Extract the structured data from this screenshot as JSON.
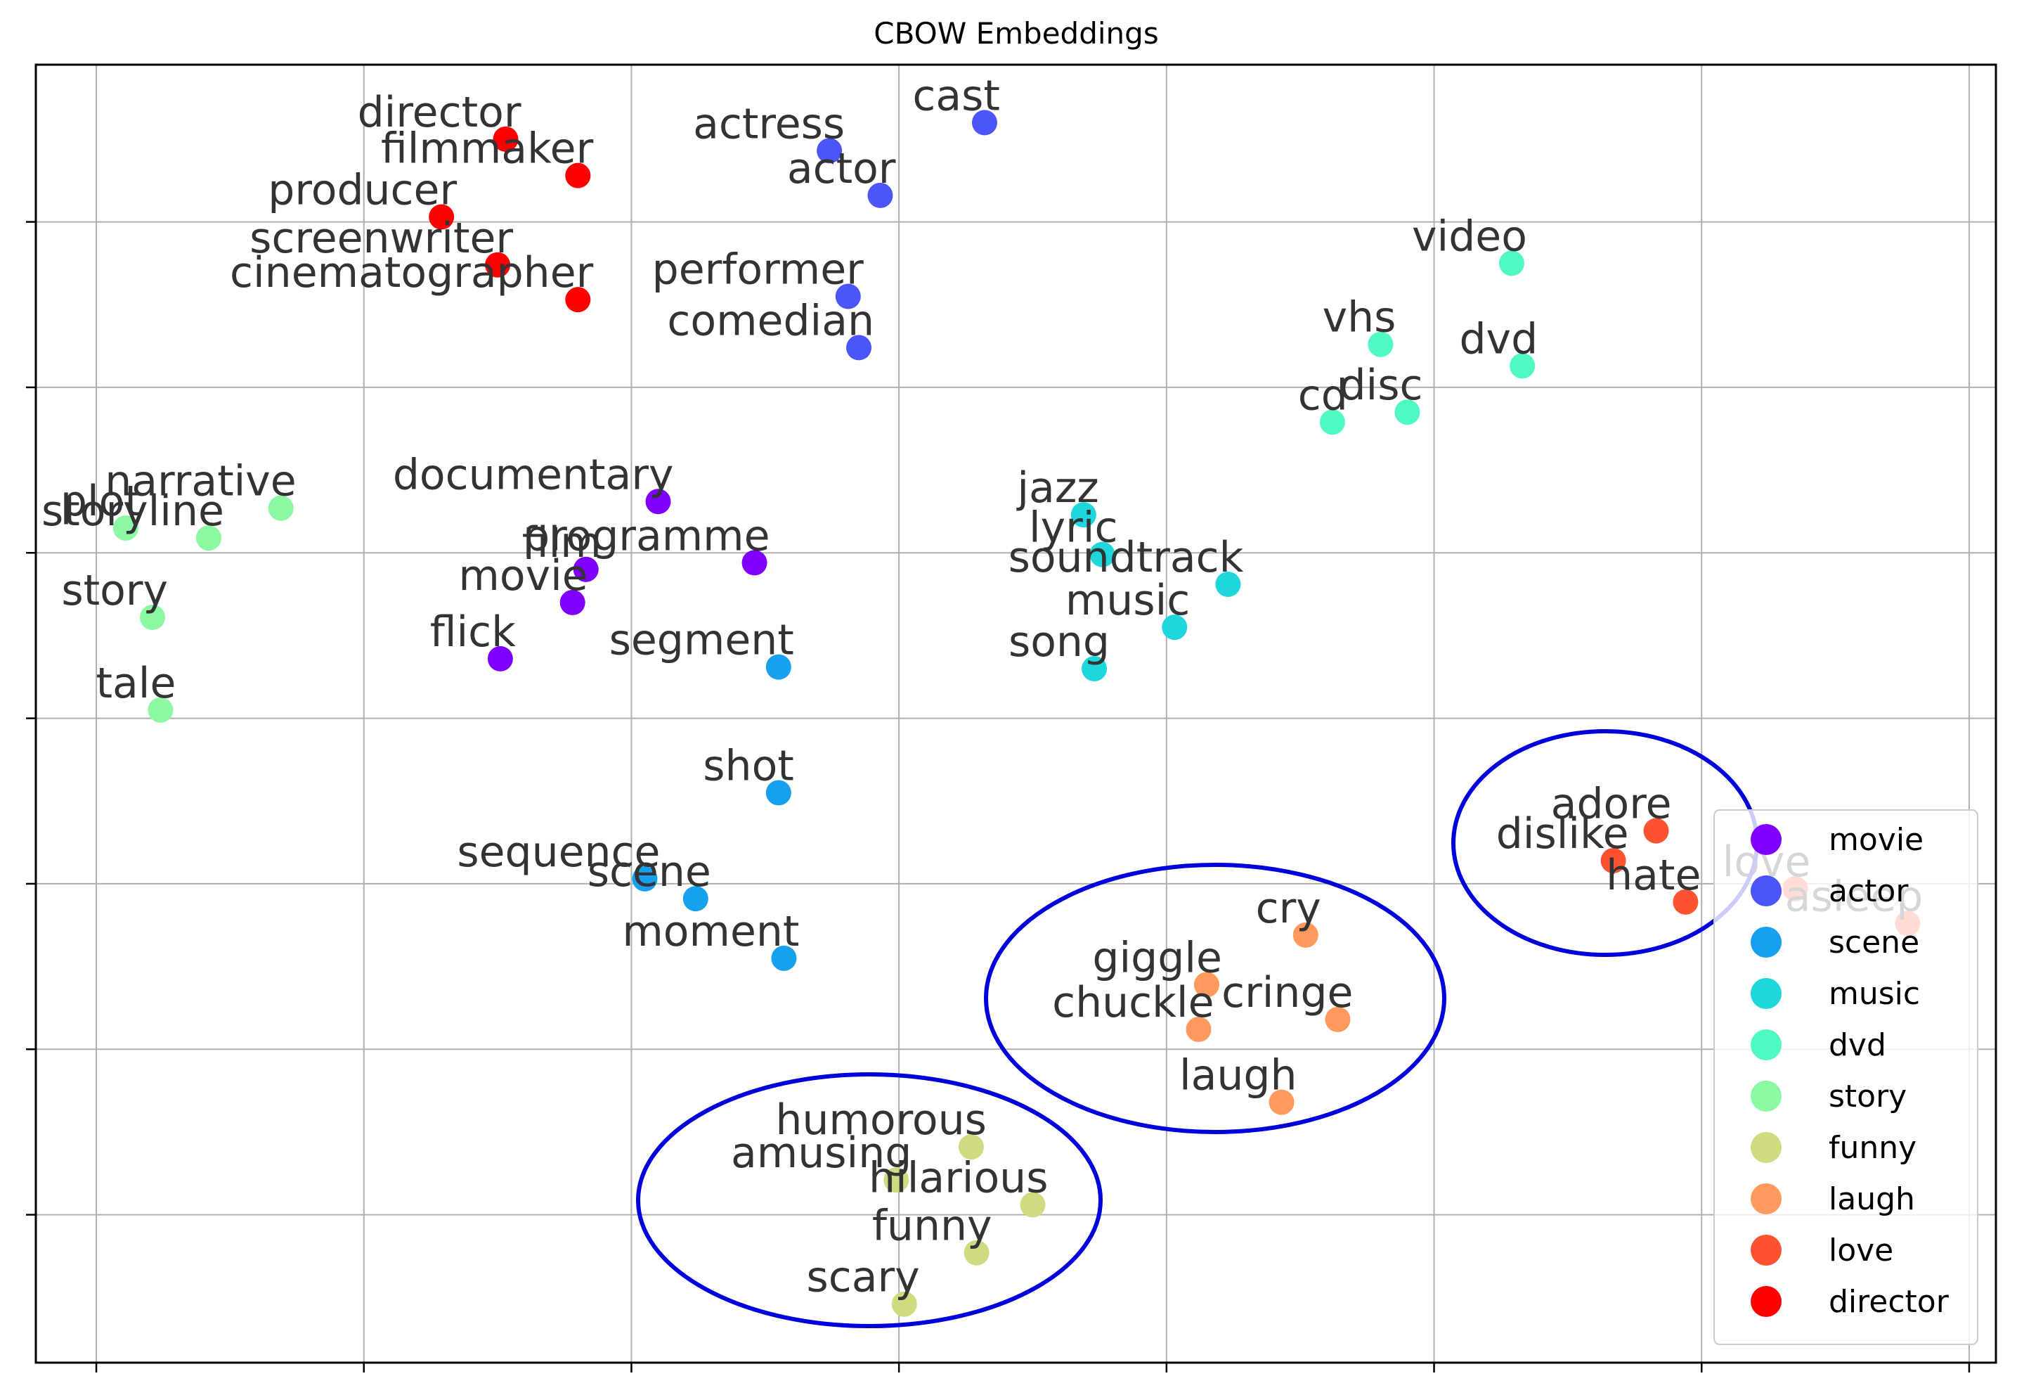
{
  "chart_data": {
    "type": "scatter",
    "title": "CBOW Embeddings",
    "xlim": [
      -0.226,
      7.1
    ],
    "ylim": [
      0.106,
      7.95
    ],
    "xticks": [
      0,
      1,
      2,
      3,
      4,
      5,
      6,
      7
    ],
    "yticks": [
      1,
      2,
      3,
      4,
      5,
      6,
      7
    ],
    "grid": true,
    "legend": "lower right",
    "series": [
      {
        "name": "movie",
        "color": "#8000ff",
        "labels": [
          "documentary",
          "programme",
          "film",
          "movie",
          "flick"
        ],
        "x": [
          2.1,
          2.46,
          1.83,
          1.78,
          1.51
        ],
        "y": [
          5.31,
          4.94,
          4.9,
          4.7,
          4.36
        ]
      },
      {
        "name": "actor",
        "color": "#4b55f9",
        "labels": [
          "actress",
          "actor",
          "cast",
          "performer",
          "comedian"
        ],
        "x": [
          2.74,
          2.93,
          3.32,
          2.81,
          2.85
        ],
        "y": [
          7.43,
          7.16,
          7.6,
          6.55,
          6.24
        ]
      },
      {
        "name": "scene",
        "color": "#17a0ed",
        "labels": [
          "segment",
          "shot",
          "sequence",
          "scene",
          "moment"
        ],
        "x": [
          2.55,
          2.55,
          2.05,
          2.24,
          2.57
        ],
        "y": [
          4.31,
          3.55,
          3.03,
          2.91,
          2.55
        ]
      },
      {
        "name": "music",
        "color": "#1ed6db",
        "labels": [
          "jazz",
          "lyric",
          "soundtrack",
          "music",
          "song"
        ],
        "x": [
          3.69,
          3.76,
          4.23,
          4.03,
          3.73
        ],
        "y": [
          5.23,
          4.99,
          4.81,
          4.55,
          4.3
        ]
      },
      {
        "name": "dvd",
        "color": "#50f8c6",
        "labels": [
          "video",
          "vhs",
          "dvd",
          "cd",
          "disc"
        ],
        "x": [
          5.29,
          4.8,
          5.33,
          4.62,
          4.9
        ],
        "y": [
          6.75,
          6.26,
          6.13,
          5.79,
          5.85
        ]
      },
      {
        "name": "story",
        "color": "#8af9a1",
        "labels": [
          "narrative",
          "plot",
          "storyline",
          "story",
          "tale"
        ],
        "x": [
          0.69,
          0.11,
          0.42,
          0.21,
          0.24
        ],
        "y": [
          5.27,
          5.15,
          5.09,
          4.61,
          4.05
        ]
      },
      {
        "name": "funny",
        "color": "#d1da81",
        "labels": [
          "humorous",
          "amusing",
          "hilarious",
          "funny",
          "scary"
        ],
        "x": [
          3.27,
          2.99,
          3.5,
          3.29,
          3.02
        ],
        "y": [
          1.41,
          1.21,
          1.06,
          0.77,
          0.46
        ]
      },
      {
        "name": "laugh",
        "color": "#ff9a5c",
        "labels": [
          "cry",
          "giggle",
          "cringe",
          "chuckle",
          "laugh"
        ],
        "x": [
          4.52,
          4.15,
          4.64,
          4.12,
          4.43
        ],
        "y": [
          2.69,
          2.39,
          2.18,
          2.12,
          1.68
        ]
      },
      {
        "name": "love",
        "color": "#ff5230",
        "labels": [
          "adore",
          "dislike",
          "hate",
          "love",
          "asleep"
        ],
        "x": [
          5.83,
          5.67,
          5.94,
          6.35,
          6.77
        ],
        "y": [
          3.32,
          3.14,
          2.89,
          2.97,
          2.76
        ]
      },
      {
        "name": "director",
        "color": "#ff0000",
        "labels": [
          "director",
          "filmmaker",
          "producer",
          "screenwriter",
          "cinematographer"
        ],
        "x": [
          1.53,
          1.8,
          1.29,
          1.5,
          1.8
        ],
        "y": [
          7.5,
          7.28,
          7.03,
          6.74,
          6.53
        ]
      }
    ]
  }
}
